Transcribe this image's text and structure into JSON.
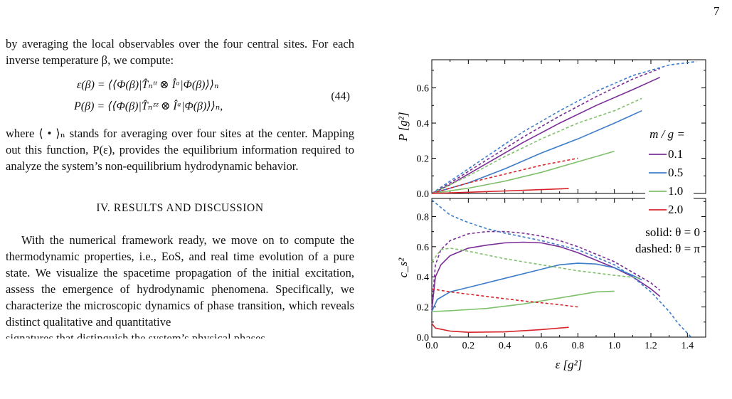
{
  "page_number": "7",
  "text": {
    "para1": "by averaging the local observables over the four central sites. For each inverse temperature β, we compute:",
    "eq1": "ε(β) = ⟨⟨Φ(β)|T̂ₙᵗᵗ ⊗ Îᵃ|Φ(β)⟩⟩ₙ",
    "eq2": "P(β) = ⟨⟨Φ(β)|T̂ₙᶻᶻ ⊗ Îᵃ|Φ(β)⟩⟩ₙ,",
    "eq_number": "(44)",
    "para2": "where ⟨ • ⟩ₙ stands for averaging over four sites at the center. Mapping out this function, P(ε), provides the equilibrium information required to analyze the system’s non-equilibrium hydrodynamic behavior.",
    "section_heading": "IV.   RESULTS AND DISCUSSION",
    "para3": "With the numerical framework ready, we move on to compute the thermodynamic properties, i.e., EoS, and real time evolution of a pure state. We visualize the spacetime propagation of the initial excitation, assess the emergence of hydrodynamic phenomena. Specifically, we characterize the microscopic dynamics of phase transition, which reveals distinct qualitative and quantitative",
    "para3_cut": "signatures that distinguish the system’s physical phases"
  },
  "colors": {
    "0.1": "#7b2d96",
    "0.5": "#3d7cc9",
    "1.0": "#7fc06b",
    "2.0": "#d7242a"
  },
  "chart_data": [
    {
      "type": "line",
      "ylabel": "P [g²]",
      "xlim": [
        0.0,
        1.5
      ],
      "ylim": [
        0.0,
        0.76
      ],
      "yticks": [
        "0.0",
        "0.2",
        "0.4",
        "0.6"
      ],
      "legend_title": "m / g =",
      "series": [
        {
          "name": "0.1",
          "style": "solid",
          "color": "#7b2d96",
          "points": [
            [
              0,
              0
            ],
            [
              0.1,
              0.05
            ],
            [
              0.3,
              0.17
            ],
            [
              0.5,
              0.29
            ],
            [
              0.7,
              0.4
            ],
            [
              0.9,
              0.5
            ],
            [
              1.1,
              0.59
            ],
            [
              1.25,
              0.66
            ]
          ]
        },
        {
          "name": "0.1",
          "style": "dashed",
          "color": "#7b2d96",
          "points": [
            [
              0,
              0
            ],
            [
              0.1,
              0.06
            ],
            [
              0.3,
              0.19
            ],
            [
              0.5,
              0.32
            ],
            [
              0.7,
              0.44
            ],
            [
              0.9,
              0.55
            ],
            [
              1.1,
              0.65
            ],
            [
              1.25,
              0.71
            ]
          ]
        },
        {
          "name": "0.5",
          "style": "solid",
          "color": "#3d7cc9",
          "points": [
            [
              0,
              0
            ],
            [
              0.2,
              0.06
            ],
            [
              0.4,
              0.14
            ],
            [
              0.6,
              0.23
            ],
            [
              0.8,
              0.31
            ],
            [
              1.0,
              0.4
            ],
            [
              1.15,
              0.47
            ]
          ]
        },
        {
          "name": "0.5",
          "style": "dashed",
          "color": "#3d7cc9",
          "points": [
            [
              0,
              0
            ],
            [
              0.1,
              0.07
            ],
            [
              0.3,
              0.21
            ],
            [
              0.5,
              0.35
            ],
            [
              0.7,
              0.47
            ],
            [
              0.9,
              0.58
            ],
            [
              1.1,
              0.67
            ],
            [
              1.3,
              0.73
            ],
            [
              1.45,
              0.75
            ]
          ]
        },
        {
          "name": "1.0",
          "style": "solid",
          "color": "#7fc06b",
          "points": [
            [
              0,
              0
            ],
            [
              0.2,
              0.03
            ],
            [
              0.4,
              0.07
            ],
            [
              0.6,
              0.12
            ],
            [
              0.8,
              0.18
            ],
            [
              1.0,
              0.24
            ]
          ]
        },
        {
          "name": "1.0",
          "style": "dashed",
          "color": "#7fc06b",
          "points": [
            [
              0,
              0
            ],
            [
              0.2,
              0.1
            ],
            [
              0.4,
              0.21
            ],
            [
              0.6,
              0.31
            ],
            [
              0.8,
              0.4
            ],
            [
              1.0,
              0.47
            ],
            [
              1.15,
              0.54
            ]
          ]
        },
        {
          "name": "2.0",
          "style": "solid",
          "color": "#d7242a",
          "points": [
            [
              0,
              0
            ],
            [
              0.2,
              0.007
            ],
            [
              0.4,
              0.014
            ],
            [
              0.6,
              0.022
            ],
            [
              0.75,
              0.028
            ]
          ]
        },
        {
          "name": "2.0",
          "style": "dashed",
          "color": "#d7242a",
          "points": [
            [
              0,
              0
            ],
            [
              0.2,
              0.06
            ],
            [
              0.4,
              0.11
            ],
            [
              0.6,
              0.16
            ],
            [
              0.8,
              0.2
            ]
          ]
        }
      ]
    },
    {
      "type": "line",
      "xlabel": "ε [g²]",
      "ylabel": "c_s²",
      "xlim": [
        0.0,
        1.5
      ],
      "ylim": [
        0.0,
        0.92
      ],
      "xticks": [
        "0.0",
        "0.2",
        "0.4",
        "0.6",
        "0.8",
        "1.0",
        "1.2",
        "1.4"
      ],
      "yticks": [
        "0.0",
        "0.2",
        "0.4",
        "0.6",
        "0.8"
      ],
      "annotations": [
        "solid: θ = 0",
        "dashed: θ = π"
      ],
      "series": [
        {
          "name": "0.1",
          "style": "solid",
          "color": "#7b2d96",
          "points": [
            [
              0.0,
              0.18
            ],
            [
              0.02,
              0.4
            ],
            [
              0.05,
              0.48
            ],
            [
              0.1,
              0.54
            ],
            [
              0.2,
              0.59
            ],
            [
              0.3,
              0.61
            ],
            [
              0.4,
              0.625
            ],
            [
              0.5,
              0.63
            ],
            [
              0.6,
              0.625
            ],
            [
              0.7,
              0.6
            ],
            [
              0.8,
              0.56
            ],
            [
              0.9,
              0.51
            ],
            [
              1.0,
              0.46
            ],
            [
              1.1,
              0.4
            ],
            [
              1.2,
              0.32
            ],
            [
              1.25,
              0.27
            ]
          ]
        },
        {
          "name": "0.1",
          "style": "dashed",
          "color": "#7b2d96",
          "points": [
            [
              0.0,
              0.2
            ],
            [
              0.02,
              0.48
            ],
            [
              0.05,
              0.58
            ],
            [
              0.1,
              0.64
            ],
            [
              0.2,
              0.685
            ],
            [
              0.3,
              0.7
            ],
            [
              0.4,
              0.7
            ],
            [
              0.5,
              0.69
            ],
            [
              0.6,
              0.67
            ],
            [
              0.7,
              0.64
            ],
            [
              0.8,
              0.6
            ],
            [
              0.9,
              0.55
            ],
            [
              1.0,
              0.5
            ],
            [
              1.1,
              0.43
            ],
            [
              1.2,
              0.36
            ],
            [
              1.25,
              0.31
            ]
          ]
        },
        {
          "name": "0.5",
          "style": "solid",
          "color": "#3d7cc9",
          "points": [
            [
              0.0,
              0.17
            ],
            [
              0.03,
              0.25
            ],
            [
              0.1,
              0.3
            ],
            [
              0.2,
              0.33
            ],
            [
              0.4,
              0.39
            ],
            [
              0.6,
              0.45
            ],
            [
              0.7,
              0.48
            ],
            [
              0.8,
              0.49
            ],
            [
              0.9,
              0.485
            ],
            [
              1.0,
              0.46
            ],
            [
              1.1,
              0.41
            ],
            [
              1.15,
              0.38
            ]
          ]
        },
        {
          "name": "0.5",
          "style": "dashed",
          "color": "#3d7cc9",
          "points": [
            [
              0.0,
              0.91
            ],
            [
              0.05,
              0.86
            ],
            [
              0.1,
              0.81
            ],
            [
              0.2,
              0.76
            ],
            [
              0.3,
              0.72
            ],
            [
              0.4,
              0.69
            ],
            [
              0.6,
              0.64
            ],
            [
              0.8,
              0.58
            ],
            [
              1.0,
              0.48
            ],
            [
              1.1,
              0.4
            ],
            [
              1.2,
              0.3
            ],
            [
              1.3,
              0.17
            ],
            [
              1.35,
              0.09
            ],
            [
              1.42,
              0.0
            ]
          ]
        },
        {
          "name": "1.0",
          "style": "solid",
          "color": "#7fc06b",
          "points": [
            [
              0.0,
              0.17
            ],
            [
              0.1,
              0.175
            ],
            [
              0.3,
              0.19
            ],
            [
              0.5,
              0.22
            ],
            [
              0.7,
              0.26
            ],
            [
              0.9,
              0.3
            ],
            [
              1.0,
              0.305
            ]
          ]
        },
        {
          "name": "1.0",
          "style": "dashed",
          "color": "#7fc06b",
          "points": [
            [
              0.0,
              0.5
            ],
            [
              0.05,
              0.58
            ],
            [
              0.1,
              0.59
            ],
            [
              0.2,
              0.57
            ],
            [
              0.4,
              0.52
            ],
            [
              0.6,
              0.48
            ],
            [
              0.8,
              0.44
            ],
            [
              1.0,
              0.41
            ],
            [
              1.15,
              0.39
            ]
          ]
        },
        {
          "name": "2.0",
          "style": "solid",
          "color": "#d7242a",
          "points": [
            [
              0.0,
              0.09
            ],
            [
              0.02,
              0.06
            ],
            [
              0.1,
              0.04
            ],
            [
              0.2,
              0.032
            ],
            [
              0.4,
              0.035
            ],
            [
              0.6,
              0.05
            ],
            [
              0.75,
              0.065
            ]
          ]
        },
        {
          "name": "2.0",
          "style": "dashed",
          "color": "#d7242a",
          "points": [
            [
              0.0,
              0.32
            ],
            [
              0.1,
              0.3
            ],
            [
              0.3,
              0.27
            ],
            [
              0.5,
              0.24
            ],
            [
              0.7,
              0.215
            ],
            [
              0.8,
              0.2
            ]
          ]
        }
      ]
    }
  ]
}
